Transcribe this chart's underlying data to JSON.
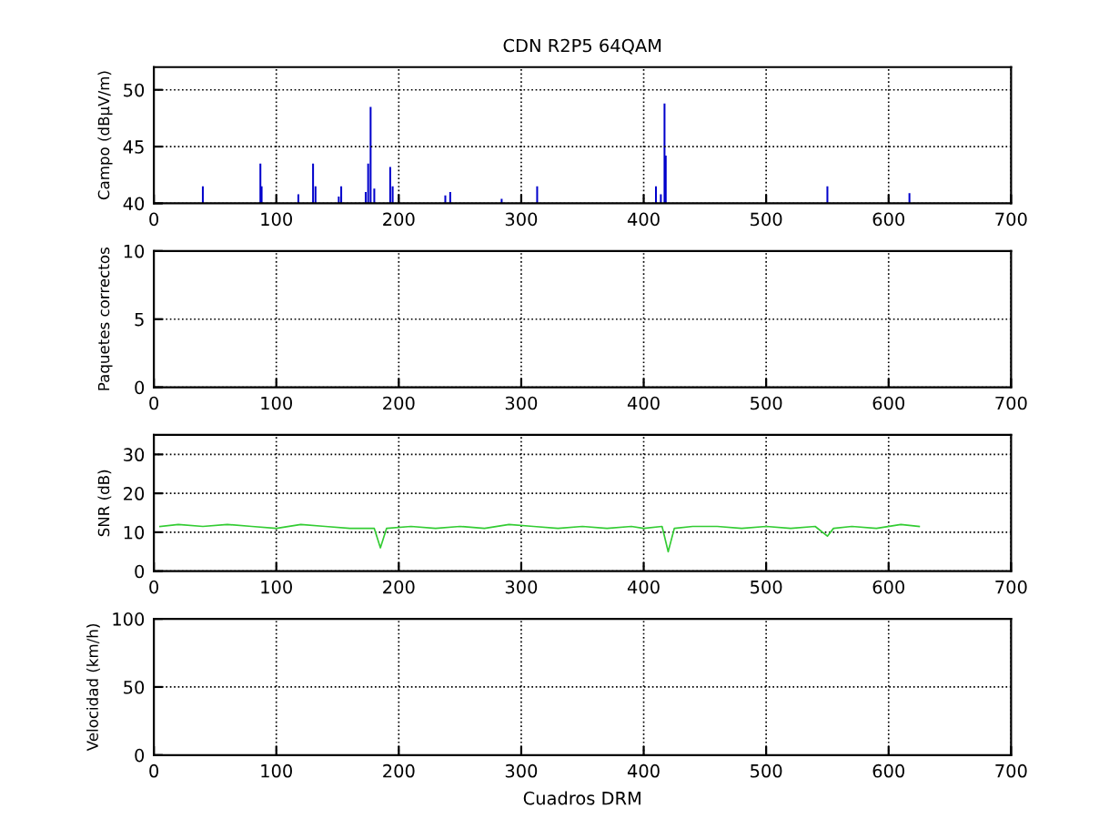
{
  "chart_data": [
    {
      "type": "bar",
      "title": "CDN R2P5 64QAM",
      "ylabel": "Campo (dBµV/m)",
      "grid": true,
      "color": "#0000cc",
      "x": [
        40,
        87,
        88,
        118,
        130,
        132,
        151,
        153,
        173,
        175,
        177,
        180,
        193,
        195,
        238,
        242,
        284,
        313,
        410,
        414,
        417,
        418,
        550,
        617
      ],
      "base": [
        40,
        40,
        40,
        40,
        40,
        40,
        40,
        40,
        40,
        40,
        40,
        40,
        40,
        40,
        40,
        40,
        40,
        40,
        40,
        40,
        40,
        40,
        40,
        40
      ],
      "values": [
        1.5,
        3.5,
        1.5,
        0.8,
        3.5,
        1.5,
        0.6,
        1.5,
        1,
        3.5,
        8.5,
        1.3,
        3.2,
        1.5,
        0.7,
        1,
        0.4,
        1.5,
        1.5,
        0.8,
        8.8,
        4.2,
        1.5,
        0.9
      ],
      "xlim": [
        0,
        700
      ],
      "xticks": [
        0,
        100,
        200,
        300,
        400,
        500,
        600,
        700
      ],
      "ylim": [
        40,
        52
      ],
      "yticks": [
        40,
        45,
        50
      ]
    },
    {
      "type": "line",
      "ylabel": "Paquetes correctos",
      "grid": true,
      "xlim": [
        0,
        700
      ],
      "xticks": [
        0,
        100,
        200,
        300,
        400,
        500,
        600,
        700
      ],
      "ylim": [
        0,
        10
      ],
      "yticks": [
        0,
        5,
        10
      ]
    },
    {
      "type": "line",
      "ylabel": "SNR (dB)",
      "grid": true,
      "color": "#33cc33",
      "x": [
        5,
        20,
        40,
        60,
        80,
        100,
        120,
        140,
        160,
        180,
        185,
        190,
        210,
        230,
        250,
        270,
        290,
        310,
        330,
        350,
        370,
        390,
        400,
        415,
        420,
        425,
        440,
        460,
        480,
        500,
        520,
        540,
        550,
        555,
        570,
        590,
        610,
        625
      ],
      "values": [
        11.5,
        12,
        11.5,
        12,
        11.5,
        11,
        12,
        11.5,
        11,
        11,
        6,
        11,
        11.5,
        11,
        11.5,
        11,
        12,
        11.5,
        11,
        11.5,
        11,
        11.5,
        11,
        11.5,
        5,
        11,
        11.5,
        11.5,
        11,
        11.5,
        11,
        11.5,
        9,
        11,
        11.5,
        11,
        12,
        11.5
      ],
      "xlim": [
        0,
        700
      ],
      "xticks": [
        0,
        100,
        200,
        300,
        400,
        500,
        600,
        700
      ],
      "ylim": [
        0,
        35
      ],
      "yticks": [
        0,
        10,
        20,
        30
      ]
    },
    {
      "type": "line",
      "ylabel": "Velocidad (km/h)",
      "xlabel": "Cuadros DRM",
      "grid": true,
      "xlim": [
        0,
        700
      ],
      "xticks": [
        0,
        100,
        200,
        300,
        400,
        500,
        600,
        700
      ],
      "ylim": [
        0,
        100
      ],
      "yticks": [
        0,
        50,
        100
      ]
    }
  ]
}
